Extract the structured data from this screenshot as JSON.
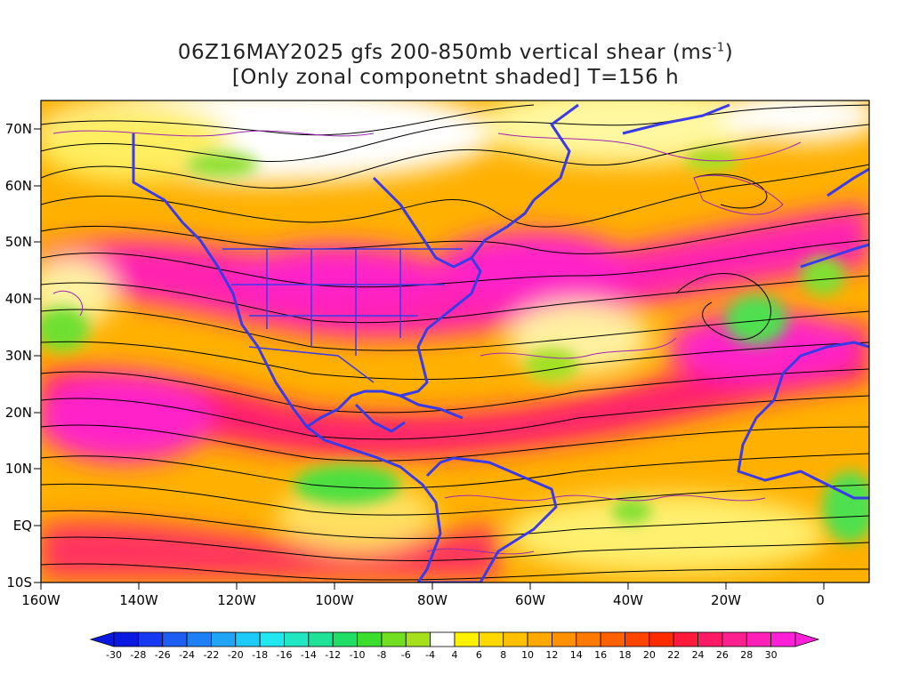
{
  "title": {
    "line1_main": "06Z16MAY2025 gfs 200-850mb vertical shear (ms",
    "line1_sup": "-1",
    "line1_end": ")",
    "line2": "[Only zonal componetnt shaded] T=156 h"
  },
  "map": {
    "lon_ticks": [
      "160W",
      "140W",
      "120W",
      "100W",
      "80W",
      "60W",
      "40W",
      "20W",
      "0"
    ],
    "lat_ticks": [
      "70N",
      "60N",
      "50N",
      "40N",
      "30N",
      "20N",
      "10N",
      "EQ",
      "10S"
    ]
  },
  "colorbar": {
    "labels": [
      "-30",
      "-28",
      "-26",
      "-24",
      "-22",
      "-20",
      "-18",
      "-16",
      "-14",
      "-12",
      "-10",
      "-8",
      "-6",
      "-4",
      "4",
      "6",
      "8",
      "10",
      "12",
      "14",
      "16",
      "18",
      "20",
      "22",
      "24",
      "26",
      "28",
      "30"
    ],
    "colors": [
      "#0a18e0",
      "#1538f0",
      "#1e5cf2",
      "#1f7ff4",
      "#1fa4f6",
      "#1ecaf8",
      "#22e6f0",
      "#20e6c2",
      "#20e296",
      "#20de66",
      "#3cde2e",
      "#72de22",
      "#a6e01c",
      "#ffffff",
      "#fff200",
      "#ffd800",
      "#ffc000",
      "#ffa800",
      "#ff9000",
      "#ff7800",
      "#ff6000",
      "#ff4400",
      "#ff2a00",
      "#ff1a3c",
      "#ff1a66",
      "#ff2090",
      "#ff20b8",
      "#ff20d8"
    ]
  },
  "colors": {
    "coast": "#3a3ae6",
    "streamline": "#000000",
    "contour": "#9c27b0"
  }
}
